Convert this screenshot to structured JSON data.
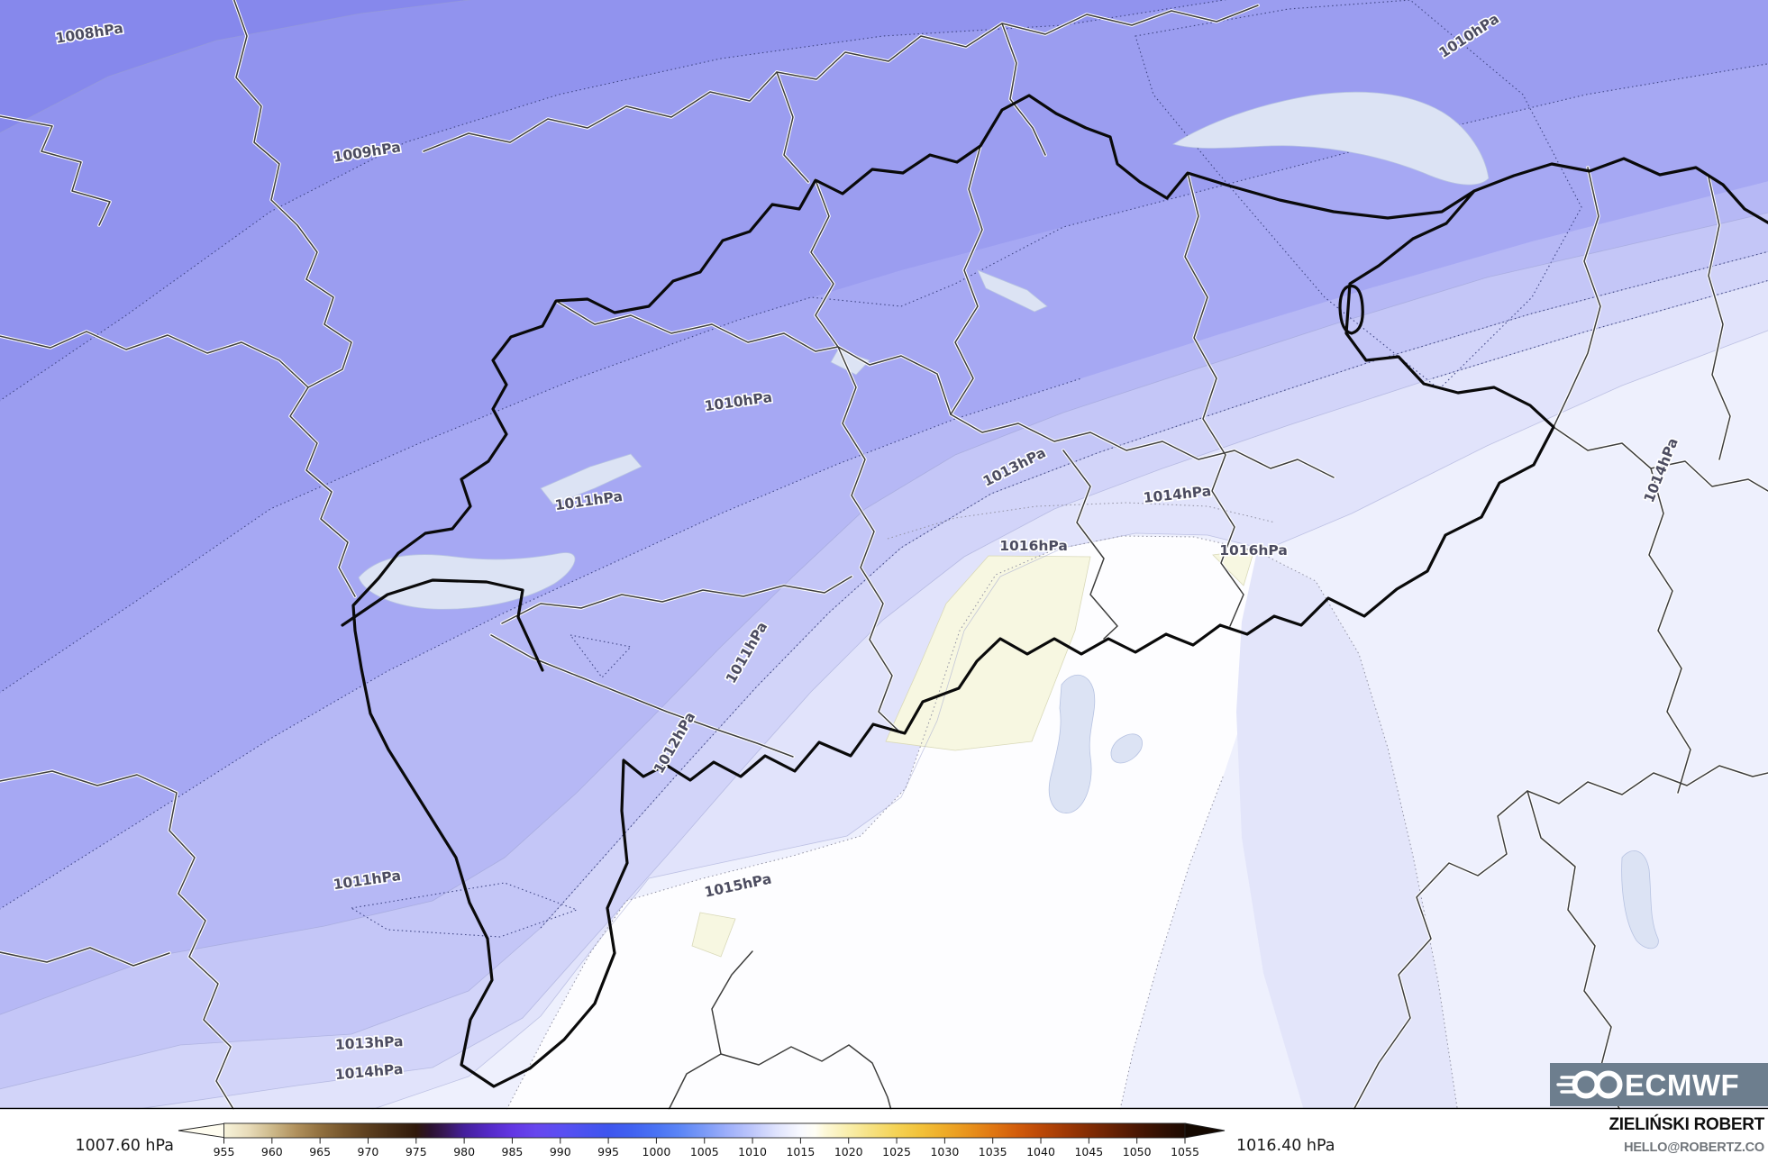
{
  "map": {
    "type": "mean-sea-level-pressure analysis map",
    "unit": "hPa",
    "pressure_range": {
      "min_label": "1007.60 hPa",
      "max_label": "1016.40 hPa"
    },
    "contour_labels": [
      {
        "text": "1008hPa"
      },
      {
        "text": "1010hPa"
      },
      {
        "text": "1009hPa"
      },
      {
        "text": "1010hPa"
      },
      {
        "text": "1013hPa"
      },
      {
        "text": "1014hPa"
      },
      {
        "text": "1011hPa"
      },
      {
        "text": "1016hPa"
      },
      {
        "text": "1016hPa"
      },
      {
        "text": "1014hPa"
      },
      {
        "text": "1011hPa"
      },
      {
        "text": "1012hPa"
      },
      {
        "text": "1011hPa"
      },
      {
        "text": "1015hPa"
      },
      {
        "text": "1013hPa"
      },
      {
        "text": "1014hPa"
      }
    ],
    "band_colors": {
      "1007": "#8688ec",
      "1008": "#9193ee",
      "1009": "#9b9df0",
      "1010": "#a6a8f3",
      "1011": "#b6b8f5",
      "1012": "#c4c6f7",
      "1013": "#d2d4f9",
      "1014": "#e1e3fb",
      "1015": "#eef0fd",
      "1016_white": "#fdfdff",
      "1016_plus_cream": "#f7f7e1",
      "lake": "#dce3f4"
    }
  },
  "colorbar": {
    "left_label": "1007.60 hPa",
    "right_label": "1016.40 hPa",
    "ticks": [
      955,
      960,
      965,
      970,
      975,
      980,
      985,
      990,
      995,
      1000,
      1005,
      1010,
      1015,
      1020,
      1025,
      1030,
      1035,
      1040,
      1045,
      1050,
      1055
    ],
    "stops": [
      {
        "v": 955,
        "c": "#f7f3da"
      },
      {
        "v": 957.5,
        "c": "#e8dcba"
      },
      {
        "v": 960,
        "c": "#cdb98a"
      },
      {
        "v": 962.5,
        "c": "#b0905c"
      },
      {
        "v": 965,
        "c": "#91703f"
      },
      {
        "v": 967.5,
        "c": "#75552c"
      },
      {
        "v": 970,
        "c": "#5c3f1f"
      },
      {
        "v": 972.5,
        "c": "#452c15"
      },
      {
        "v": 975,
        "c": "#30190b"
      },
      {
        "v": 976.5,
        "c": "#2c1230"
      },
      {
        "v": 978,
        "c": "#371857"
      },
      {
        "v": 980,
        "c": "#45209c"
      },
      {
        "v": 982.5,
        "c": "#5429c6"
      },
      {
        "v": 985,
        "c": "#6236e3"
      },
      {
        "v": 987.5,
        "c": "#6746ee"
      },
      {
        "v": 990,
        "c": "#5b4ef2"
      },
      {
        "v": 992.5,
        "c": "#4b52f0"
      },
      {
        "v": 995,
        "c": "#3e55ee"
      },
      {
        "v": 997.5,
        "c": "#4162f1"
      },
      {
        "v": 1000,
        "c": "#4a73f4"
      },
      {
        "v": 1002.5,
        "c": "#5c86f6"
      },
      {
        "v": 1005,
        "c": "#7b9af7"
      },
      {
        "v": 1007.5,
        "c": "#9fb0fa"
      },
      {
        "v": 1010,
        "c": "#bec7fb"
      },
      {
        "v": 1012.5,
        "c": "#dfe3fd"
      },
      {
        "v": 1015,
        "c": "#f8f9ff"
      },
      {
        "v": 1016.5,
        "c": "#fffef5"
      },
      {
        "v": 1017.5,
        "c": "#fdf8d9"
      },
      {
        "v": 1020,
        "c": "#f9eeab"
      },
      {
        "v": 1022.5,
        "c": "#f6e07e"
      },
      {
        "v": 1025,
        "c": "#f4d254"
      },
      {
        "v": 1027.5,
        "c": "#f2c139"
      },
      {
        "v": 1030,
        "c": "#eeab28"
      },
      {
        "v": 1032.5,
        "c": "#e8921c"
      },
      {
        "v": 1035,
        "c": "#e07712"
      },
      {
        "v": 1037.5,
        "c": "#d25c0b"
      },
      {
        "v": 1040,
        "c": "#bb4807"
      },
      {
        "v": 1042.5,
        "c": "#a03905"
      },
      {
        "v": 1045,
        "c": "#832c04"
      },
      {
        "v": 1047.5,
        "c": "#672103"
      },
      {
        "v": 1050,
        "c": "#4b1703"
      },
      {
        "v": 1052.5,
        "c": "#321002"
      },
      {
        "v": 1055,
        "c": "#1d0a01"
      }
    ],
    "under_arrow_color": "#fffdf0",
    "over_arrow_color": "#140800"
  },
  "logo": {
    "text": "ECMWF",
    "box_color": "#6d7e8e"
  },
  "attribution": {
    "name": "ZIELIŃSKI ROBERT",
    "email": "HELLO@ROBERTZ.CO"
  }
}
